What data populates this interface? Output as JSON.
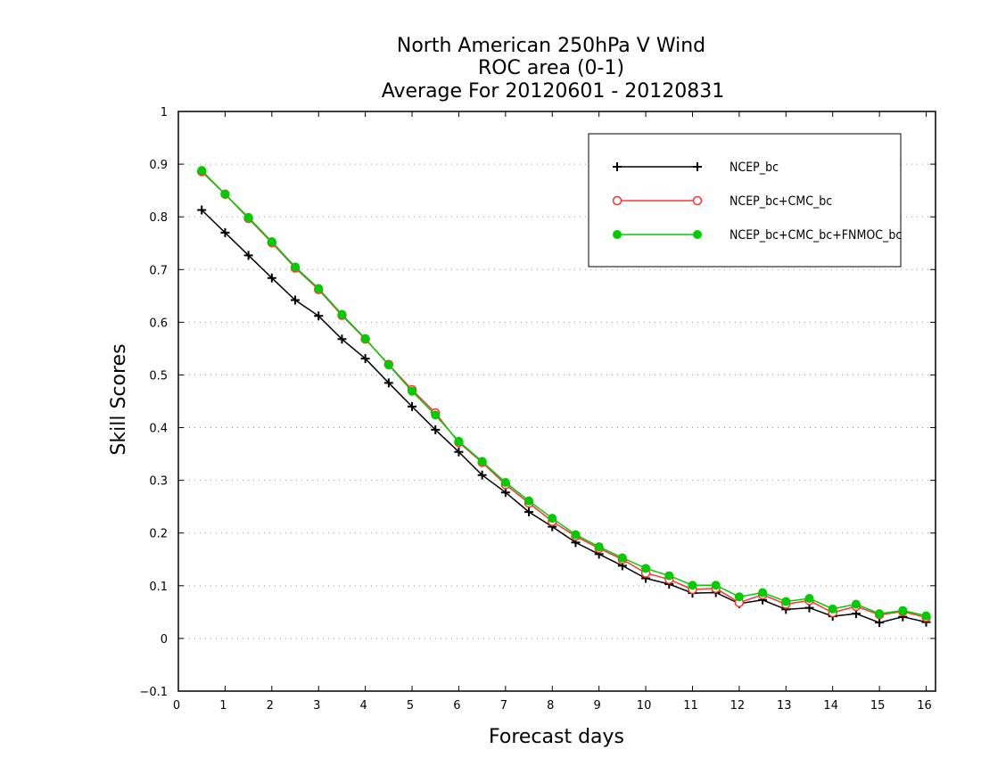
{
  "chart_data": {
    "type": "line",
    "title": [
      "North American 250hPa V Wind",
      "ROC area (0-1)",
      "Average For 20120601 - 20120831"
    ],
    "xlabel": "Forecast days",
    "ylabel": "Skill Scores",
    "xlim": [
      0,
      16.2
    ],
    "ylim": [
      -0.1,
      1
    ],
    "xticks": [
      "0",
      "1",
      "2",
      "3",
      "4",
      "5",
      "6",
      "7",
      "8",
      "9",
      "10",
      "11",
      "12",
      "13",
      "14",
      "15",
      "16"
    ],
    "yticks": [
      "−0.1",
      "0",
      "0.1",
      "0.2",
      "0.3",
      "0.4",
      "0.5",
      "0.6",
      "0.7",
      "0.8",
      "0.9",
      "1"
    ],
    "grid": true,
    "legend_position": "top-right",
    "x": [
      0.5,
      1,
      1.5,
      2,
      2.5,
      3,
      3.5,
      4,
      4.5,
      5,
      5.5,
      6,
      6.5,
      7,
      7.5,
      8,
      8.5,
      9,
      9.5,
      10,
      10.5,
      11,
      11.5,
      12,
      12.5,
      13,
      13.5,
      14,
      14.5,
      15,
      15.5,
      16
    ],
    "series": [
      {
        "name": "NCEP_bc",
        "color": "#000000",
        "marker": "plus",
        "values": [
          0.813,
          0.77,
          0.727,
          0.684,
          0.642,
          0.612,
          0.568,
          0.531,
          0.485,
          0.44,
          0.396,
          0.354,
          0.31,
          0.277,
          0.24,
          0.212,
          0.182,
          0.16,
          0.138,
          0.114,
          0.103,
          0.086,
          0.087,
          0.066,
          0.073,
          0.055,
          0.058,
          0.042,
          0.047,
          0.03,
          0.041,
          0.031
        ]
      },
      {
        "name": "NCEP_bc+CMC_bc",
        "color": "#ff3333",
        "marker": "circle-open",
        "values": [
          0.886,
          0.843,
          0.797,
          0.751,
          0.703,
          0.662,
          0.613,
          0.568,
          0.52,
          0.472,
          0.428,
          0.372,
          0.334,
          0.292,
          0.257,
          0.222,
          0.194,
          0.171,
          0.15,
          0.124,
          0.112,
          0.093,
          0.095,
          0.068,
          0.083,
          0.065,
          0.072,
          0.049,
          0.061,
          0.045,
          0.051,
          0.04
        ]
      },
      {
        "name": "NCEP_bc+CMC_bc+FNMOC_bc",
        "color": "#00cc00",
        "marker": "circle-filled",
        "values": [
          0.888,
          0.843,
          0.799,
          0.753,
          0.705,
          0.664,
          0.615,
          0.569,
          0.519,
          0.469,
          0.424,
          0.374,
          0.336,
          0.296,
          0.261,
          0.228,
          0.197,
          0.174,
          0.153,
          0.133,
          0.119,
          0.101,
          0.101,
          0.079,
          0.087,
          0.07,
          0.076,
          0.056,
          0.065,
          0.047,
          0.053,
          0.043
        ]
      }
    ]
  }
}
